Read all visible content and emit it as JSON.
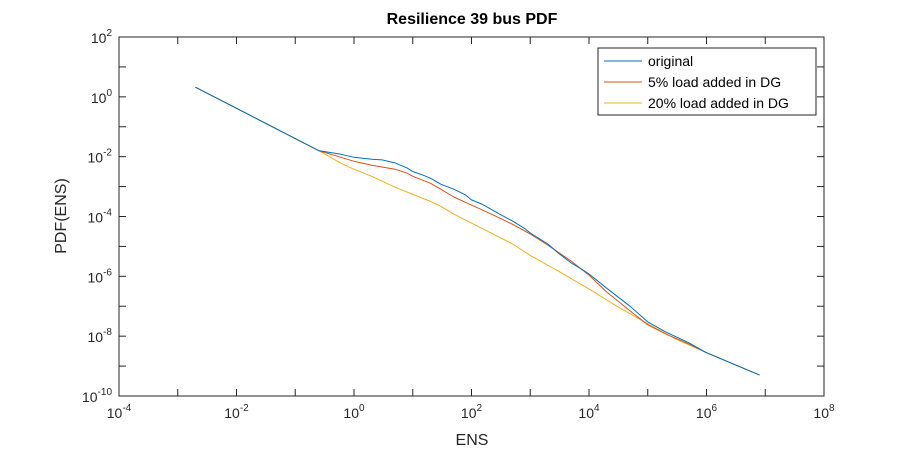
{
  "chart_data": {
    "type": "line",
    "title": "Resilience 39 bus PDF",
    "xlabel": "ENS",
    "ylabel": "PDF(ENS)",
    "xscale": "log",
    "yscale": "log",
    "xlim": [
      0.0001,
      100000000
    ],
    "ylim": [
      1e-10,
      100
    ],
    "grid": false,
    "legend_position": "top-right",
    "x_ticks": [
      {
        "base": "10",
        "exp": "-4"
      },
      {
        "base": "10",
        "exp": "-2"
      },
      {
        "base": "10",
        "exp": "0"
      },
      {
        "base": "10",
        "exp": "2"
      },
      {
        "base": "10",
        "exp": "4"
      },
      {
        "base": "10",
        "exp": "6"
      },
      {
        "base": "10",
        "exp": "8"
      }
    ],
    "y_ticks": [
      {
        "base": "10",
        "exp": "-10"
      },
      {
        "base": "10",
        "exp": "-8"
      },
      {
        "base": "10",
        "exp": "-6"
      },
      {
        "base": "10",
        "exp": "-4"
      },
      {
        "base": "10",
        "exp": "-2"
      },
      {
        "base": "10",
        "exp": "0"
      },
      {
        "base": "10",
        "exp": "2"
      }
    ],
    "series": [
      {
        "name": "original",
        "color": "#0072BD",
        "x": [
          0.002,
          0.25,
          0.6,
          1,
          2,
          3,
          5,
          8,
          10,
          15,
          20,
          30,
          50,
          80,
          100,
          150,
          200,
          300,
          500,
          800,
          1000,
          2000,
          3000,
          5000,
          8000,
          10000,
          20000,
          50000,
          100000,
          200000,
          500000,
          1000000,
          8000000
        ],
        "y": [
          2.1,
          0.016,
          0.012,
          0.0095,
          0.0082,
          0.0078,
          0.0062,
          0.0042,
          0.0032,
          0.0024,
          0.0019,
          0.0012,
          0.00082,
          0.00052,
          0.00036,
          0.00026,
          0.00019,
          0.00012,
          7e-05,
          4e-05,
          2.8e-05,
          1.2e-05,
          6e-06,
          2.8e-06,
          1.6e-06,
          1.2e-06,
          4e-07,
          1e-07,
          3e-08,
          1.4e-08,
          6e-09,
          2.8e-09,
          5e-10
        ]
      },
      {
        "name": "5% load added in DG",
        "color": "#D95319",
        "x": [
          0.002,
          0.25,
          0.6,
          1,
          2,
          3,
          5,
          8,
          10,
          20,
          30,
          50,
          100,
          200,
          500,
          1000,
          2000,
          5000,
          10000,
          20000,
          50000,
          100000,
          200000,
          500000,
          1000000,
          8000000
        ],
        "y": [
          2.1,
          0.016,
          0.0095,
          0.007,
          0.0052,
          0.0045,
          0.0038,
          0.0028,
          0.0022,
          0.0013,
          0.00082,
          0.00045,
          0.00024,
          0.00013,
          5.5e-05,
          2.6e-05,
          1.1e-05,
          3.2e-06,
          1.1e-06,
          3e-07,
          7e-08,
          2.4e-08,
          1.2e-08,
          5.5e-09,
          2.8e-09,
          5e-10
        ]
      },
      {
        "name": "20% load added in DG",
        "color": "#EDB120",
        "x": [
          0.002,
          0.25,
          0.6,
          1,
          2,
          5,
          10,
          20,
          30,
          50,
          100,
          200,
          500,
          1000,
          3000,
          10000,
          30000,
          100000,
          300000,
          1000000,
          8000000
        ],
        "y": [
          2.1,
          0.016,
          0.006,
          0.0038,
          0.0022,
          0.00095,
          0.00055,
          0.00032,
          0.00022,
          0.00012,
          6e-05,
          3e-05,
          1.2e-05,
          5e-06,
          1.5e-06,
          3.8e-07,
          1e-07,
          2.6e-08,
          8e-09,
          2.8e-09,
          5e-10
        ]
      }
    ]
  }
}
